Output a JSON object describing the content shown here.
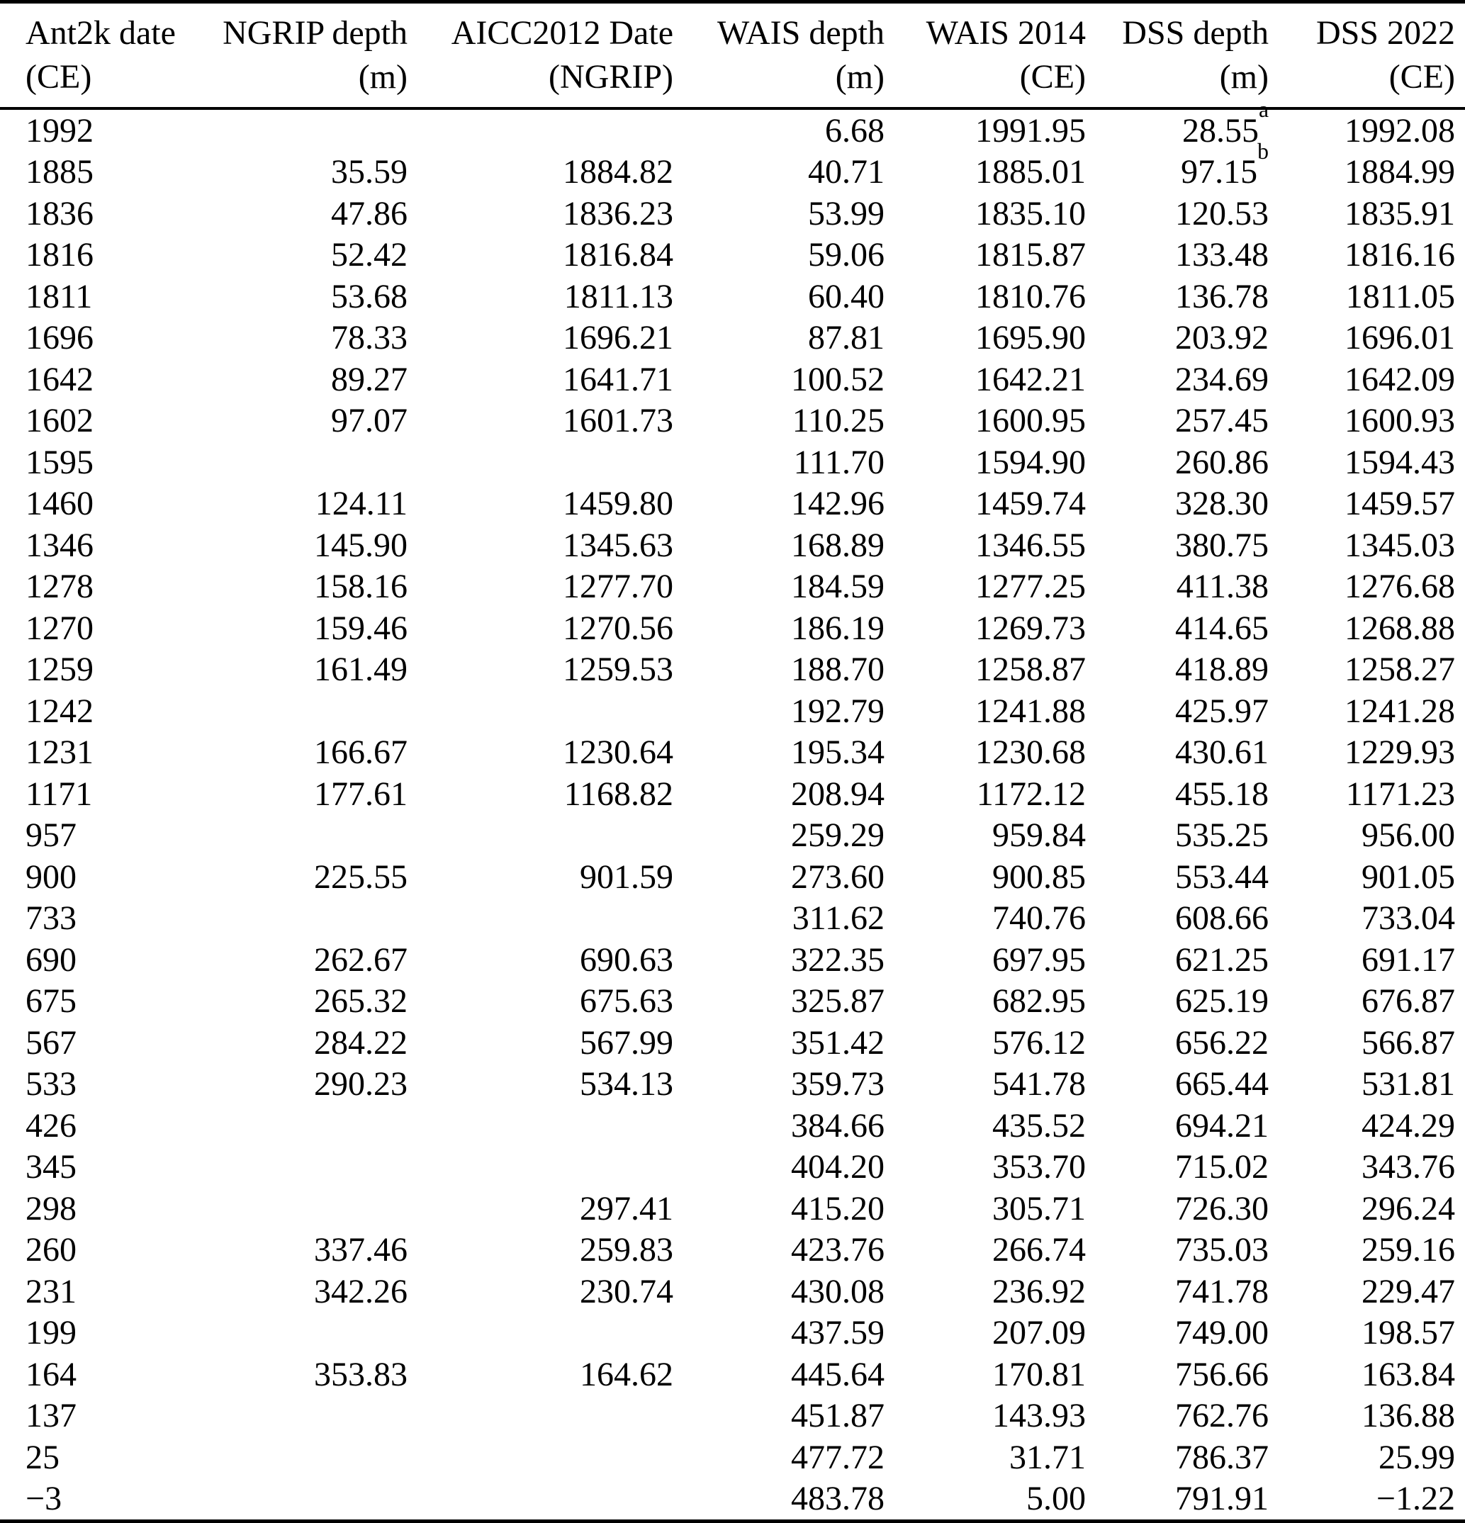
{
  "page": {
    "type": "paper-table",
    "colors": {
      "background": "#ffffff",
      "text": "#000000",
      "rules": "#000000"
    }
  },
  "table": {
    "columns": [
      {
        "label": "Ant2k date",
        "unit": "(CE)",
        "align": "left"
      },
      {
        "label": "NGRIP depth",
        "unit": "(m)",
        "align": "right"
      },
      {
        "label": "AICC2012 Date",
        "unit": "(NGRIP)",
        "align": "right"
      },
      {
        "label": "WAIS depth",
        "unit": "(m)",
        "align": "right"
      },
      {
        "label": "WAIS 2014",
        "unit": "(CE)",
        "align": "right"
      },
      {
        "label": "DSS depth",
        "unit": "(m)",
        "align": "right"
      },
      {
        "label": "DSS 2022",
        "unit": "(CE)",
        "align": "right"
      }
    ],
    "footnote_markers": [
      "a",
      "b"
    ],
    "rows": [
      [
        "1992",
        "",
        "",
        "6.68",
        "1991.95",
        "28.55^a",
        "1992.08"
      ],
      [
        "1885",
        "35.59",
        "1884.82",
        "40.71",
        "1885.01",
        "97.15^b",
        "1884.99"
      ],
      [
        "1836",
        "47.86",
        "1836.23",
        "53.99",
        "1835.10",
        "120.53",
        "1835.91"
      ],
      [
        "1816",
        "52.42",
        "1816.84",
        "59.06",
        "1815.87",
        "133.48",
        "1816.16"
      ],
      [
        "1811",
        "53.68",
        "1811.13",
        "60.40",
        "1810.76",
        "136.78",
        "1811.05"
      ],
      [
        "1696",
        "78.33",
        "1696.21",
        "87.81",
        "1695.90",
        "203.92",
        "1696.01"
      ],
      [
        "1642",
        "89.27",
        "1641.71",
        "100.52",
        "1642.21",
        "234.69",
        "1642.09"
      ],
      [
        "1602",
        "97.07",
        "1601.73",
        "110.25",
        "1600.95",
        "257.45",
        "1600.93"
      ],
      [
        "1595",
        "",
        "",
        "111.70",
        "1594.90",
        "260.86",
        "1594.43"
      ],
      [
        "1460",
        "124.11",
        "1459.80",
        "142.96",
        "1459.74",
        "328.30",
        "1459.57"
      ],
      [
        "1346",
        "145.90",
        "1345.63",
        "168.89",
        "1346.55",
        "380.75",
        "1345.03"
      ],
      [
        "1278",
        "158.16",
        "1277.70",
        "184.59",
        "1277.25",
        "411.38",
        "1276.68"
      ],
      [
        "1270",
        "159.46",
        "1270.56",
        "186.19",
        "1269.73",
        "414.65",
        "1268.88"
      ],
      [
        "1259",
        "161.49",
        "1259.53",
        "188.70",
        "1258.87",
        "418.89",
        "1258.27"
      ],
      [
        "1242",
        "",
        "",
        "192.79",
        "1241.88",
        "425.97",
        "1241.28"
      ],
      [
        "1231",
        "166.67",
        "1230.64",
        "195.34",
        "1230.68",
        "430.61",
        "1229.93"
      ],
      [
        "1171",
        "177.61",
        "1168.82",
        "208.94",
        "1172.12",
        "455.18",
        "1171.23"
      ],
      [
        "957",
        "",
        "",
        "259.29",
        "959.84",
        "535.25",
        "956.00"
      ],
      [
        "900",
        "225.55",
        "901.59",
        "273.60",
        "900.85",
        "553.44",
        "901.05"
      ],
      [
        "733",
        "",
        "",
        "311.62",
        "740.76",
        "608.66",
        "733.04"
      ],
      [
        "690",
        "262.67",
        "690.63",
        "322.35",
        "697.95",
        "621.25",
        "691.17"
      ],
      [
        "675",
        "265.32",
        "675.63",
        "325.87",
        "682.95",
        "625.19",
        "676.87"
      ],
      [
        "567",
        "284.22",
        "567.99",
        "351.42",
        "576.12",
        "656.22",
        "566.87"
      ],
      [
        "533",
        "290.23",
        "534.13",
        "359.73",
        "541.78",
        "665.44",
        "531.81"
      ],
      [
        "426",
        "",
        "",
        "384.66",
        "435.52",
        "694.21",
        "424.29"
      ],
      [
        "345",
        "",
        "",
        "404.20",
        "353.70",
        "715.02",
        "343.76"
      ],
      [
        "298",
        "",
        "297.41",
        "415.20",
        "305.71",
        "726.30",
        "296.24"
      ],
      [
        "260",
        "337.46",
        "259.83",
        "423.76",
        "266.74",
        "735.03",
        "259.16"
      ],
      [
        "231",
        "342.26",
        "230.74",
        "430.08",
        "236.92",
        "741.78",
        "229.47"
      ],
      [
        "199",
        "",
        "",
        "437.59",
        "207.09",
        "749.00",
        "198.57"
      ],
      [
        "164",
        "353.83",
        "164.62",
        "445.64",
        "170.81",
        "756.66",
        "163.84"
      ],
      [
        "137",
        "",
        "",
        "451.87",
        "143.93",
        "762.76",
        "136.88"
      ],
      [
        "25",
        "",
        "",
        "477.72",
        "31.71",
        "786.37",
        "25.99"
      ],
      [
        "−3",
        "",
        "",
        "483.78",
        "5.00",
        "791.91",
        "−1.22"
      ]
    ]
  }
}
